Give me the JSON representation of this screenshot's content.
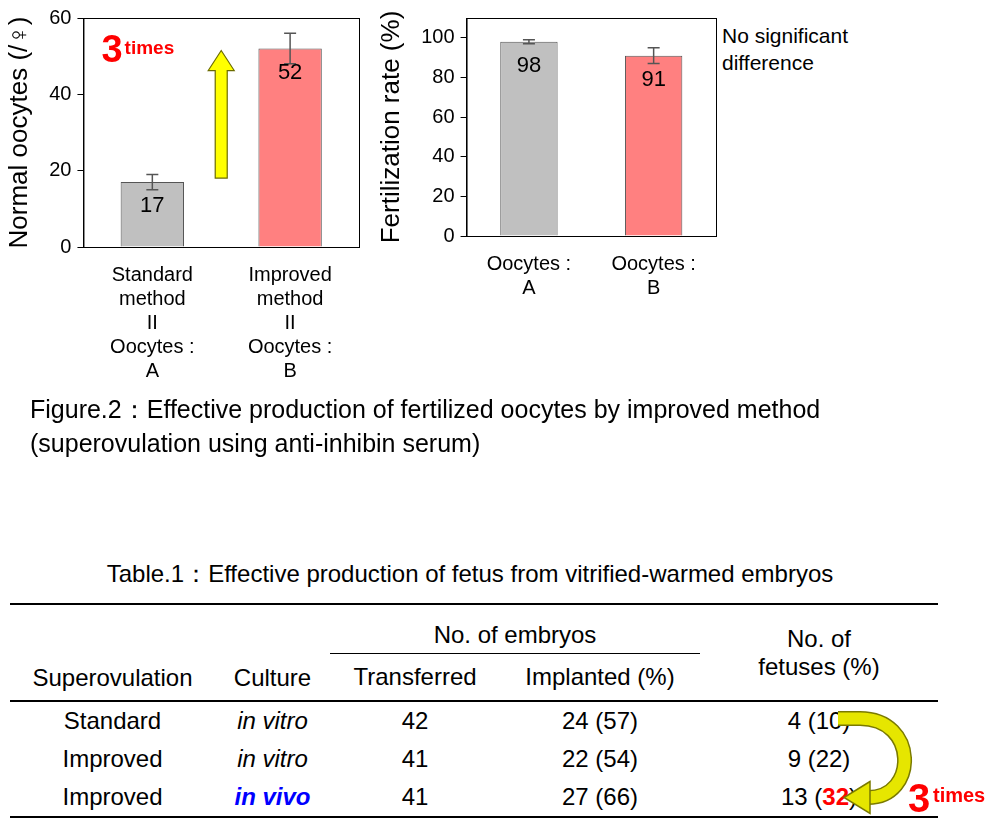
{
  "chart_data": [
    {
      "type": "bar",
      "y_label": "Normal oocytes (/♀)",
      "categories": [
        [
          "Standard",
          "method",
          "II",
          "Oocytes :",
          "A"
        ],
        [
          "Improved",
          "method",
          "II",
          "Oocytes :",
          "B"
        ]
      ],
      "values": [
        17,
        52
      ],
      "errors": [
        2,
        4
      ],
      "colors": [
        "#c0c0c0",
        "#ff8080"
      ],
      "ylim": [
        0,
        60
      ],
      "yticks": [
        0,
        20,
        40,
        60
      ],
      "grid": false,
      "data_labels": true,
      "annotation": [
        "3",
        "times"
      ]
    },
    {
      "type": "bar",
      "y_label": "Fertilization rate (%)",
      "categories": [
        [
          "Oocytes :",
          "A"
        ],
        [
          "Oocytes :",
          "B"
        ]
      ],
      "values": [
        98,
        91
      ],
      "errors": [
        1,
        4
      ],
      "colors": [
        "#c0c0c0",
        "#ff8080"
      ],
      "ylim": [
        0,
        110
      ],
      "yticks": [
        0,
        20,
        40,
        60,
        80,
        100
      ],
      "grid": false,
      "data_labels": true,
      "note": "No significant difference"
    }
  ],
  "figure_caption": "Figure.2：Effective production of fertilized oocytes by improved method (superovulation using anti-inhibin serum)",
  "table": {
    "title": "Table.1：Effective production of fetus from vitrified-warmed embryos",
    "header_group": "No. of embryos",
    "columns": [
      "Superovulation",
      "Culture",
      "Transferred",
      "Implanted (%)",
      "No. of fetuses (%)"
    ],
    "rows": [
      [
        "Standard",
        "in vitro",
        "42",
        "24 (57)",
        "4 (10)"
      ],
      [
        "Improved",
        "in vitro",
        "41",
        "22 (54)",
        "9 (22)"
      ],
      [
        "Improved",
        "in vivo",
        "41",
        "27 (66)",
        "13 (32)"
      ]
    ],
    "emphasis": [
      {
        "row": 2,
        "col": 1,
        "part": "in vivo",
        "color": "#0000ff"
      },
      {
        "row": 2,
        "col": 4,
        "part": "32",
        "color": "#ff0000"
      }
    ],
    "annotation": [
      "3",
      "times"
    ]
  }
}
